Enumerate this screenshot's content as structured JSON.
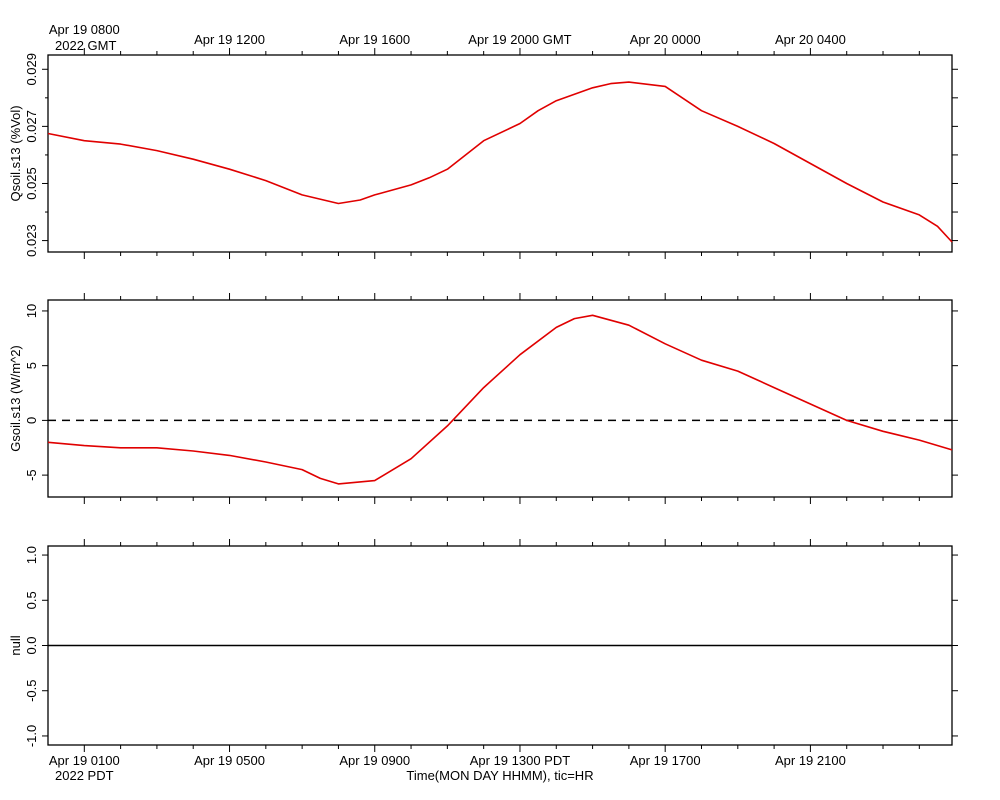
{
  "chart_data": [
    {
      "type": "line",
      "ylabel": "Qsoil.s13 (%Vol)",
      "ylim": [
        0.0226,
        0.0295
      ],
      "yticks": [
        "0.023",
        "0.025",
        "0.027",
        "0.029"
      ],
      "ytick_values": [
        0.023,
        0.025,
        0.027,
        0.029
      ],
      "top_time_labels": [
        {
          "label": "Apr 19 0800",
          "hour": 0
        },
        {
          "label": "Apr 19 1200",
          "hour": 4
        },
        {
          "label": "Apr 19 1600",
          "hour": 8
        },
        {
          "label": "Apr 19 2000 GMT",
          "hour": 12
        },
        {
          "label": "Apr 20 0000",
          "hour": 16
        },
        {
          "label": "Apr 20 0400",
          "hour": 20
        }
      ],
      "top_year_label": "2022 GMT",
      "series": [
        {
          "color": "#e00000",
          "hours": [
            -1.0,
            0.0,
            1.0,
            2.0,
            3.0,
            4.0,
            5.0,
            6.0,
            7.0,
            7.6,
            8.0,
            9.0,
            9.5,
            10.0,
            11.0,
            12.0,
            12.5,
            13.0,
            14.0,
            14.5,
            15.0,
            16.0,
            17.0,
            18.0,
            19.0,
            20.0,
            21.0,
            22.0,
            23.0,
            23.5,
            23.9
          ],
          "values": [
            0.02675,
            0.0265,
            0.02638,
            0.02615,
            0.02585,
            0.0255,
            0.0251,
            0.0246,
            0.0243,
            0.02442,
            0.0246,
            0.02495,
            0.0252,
            0.0255,
            0.0265,
            0.0271,
            0.02755,
            0.0279,
            0.02835,
            0.0285,
            0.02855,
            0.0284,
            0.02755,
            0.027,
            0.0264,
            0.0257,
            0.025,
            0.02435,
            0.0239,
            0.0235,
            0.02295
          ]
        }
      ]
    },
    {
      "type": "line",
      "ylabel": "Gsoil.s13 (W/m^2)",
      "ylim": [
        -7,
        11
      ],
      "yticks": [
        "10",
        "5",
        "0",
        "-5"
      ],
      "ytick_values": [
        10,
        5,
        0,
        -5
      ],
      "reference_line": 0,
      "series": [
        {
          "color": "#e00000",
          "hours": [
            -1.0,
            0.0,
            1.0,
            2.0,
            3.0,
            4.0,
            5.0,
            6.0,
            6.5,
            7.0,
            8.0,
            9.0,
            10.0,
            11.0,
            12.0,
            13.0,
            13.5,
            14.0,
            15.0,
            16.0,
            17.0,
            18.0,
            19.0,
            20.0,
            21.0,
            22.0,
            23.0,
            23.9
          ],
          "values": [
            -2.0,
            -2.3,
            -2.5,
            -2.5,
            -2.8,
            -3.2,
            -3.8,
            -4.5,
            -5.3,
            -5.8,
            -5.5,
            -3.5,
            -0.5,
            3.0,
            6.0,
            8.5,
            9.3,
            9.6,
            8.7,
            7.0,
            5.5,
            4.5,
            3.0,
            1.5,
            0.0,
            -1.0,
            -1.8,
            -2.7
          ]
        }
      ]
    },
    {
      "type": "line",
      "ylabel": "null",
      "ylim": [
        -1.1,
        1.1
      ],
      "yticks": [
        "1.0",
        "0.5",
        "0.0",
        "-0.5",
        "-1.0"
      ],
      "ytick_values": [
        1.0,
        0.5,
        0.0,
        -0.5,
        -1.0
      ],
      "series": [
        {
          "color": "#000000",
          "hours": [
            -1.0,
            23.9
          ],
          "values": [
            0.0,
            0.0
          ]
        }
      ],
      "bottom_time_labels": [
        {
          "label": "Apr 19 0100",
          "hour": 0
        },
        {
          "label": "Apr 19 0500",
          "hour": 4
        },
        {
          "label": "Apr 19 0900",
          "hour": 8
        },
        {
          "label": "Apr 19 1300 PDT",
          "hour": 12
        },
        {
          "label": "Apr 19 1700",
          "hour": 16
        },
        {
          "label": "Apr 19 2100",
          "hour": 20
        }
      ],
      "bottom_year_label": "2022 PDT",
      "xlabel": "Time(MON DAY HHMM), tic=HR"
    }
  ]
}
